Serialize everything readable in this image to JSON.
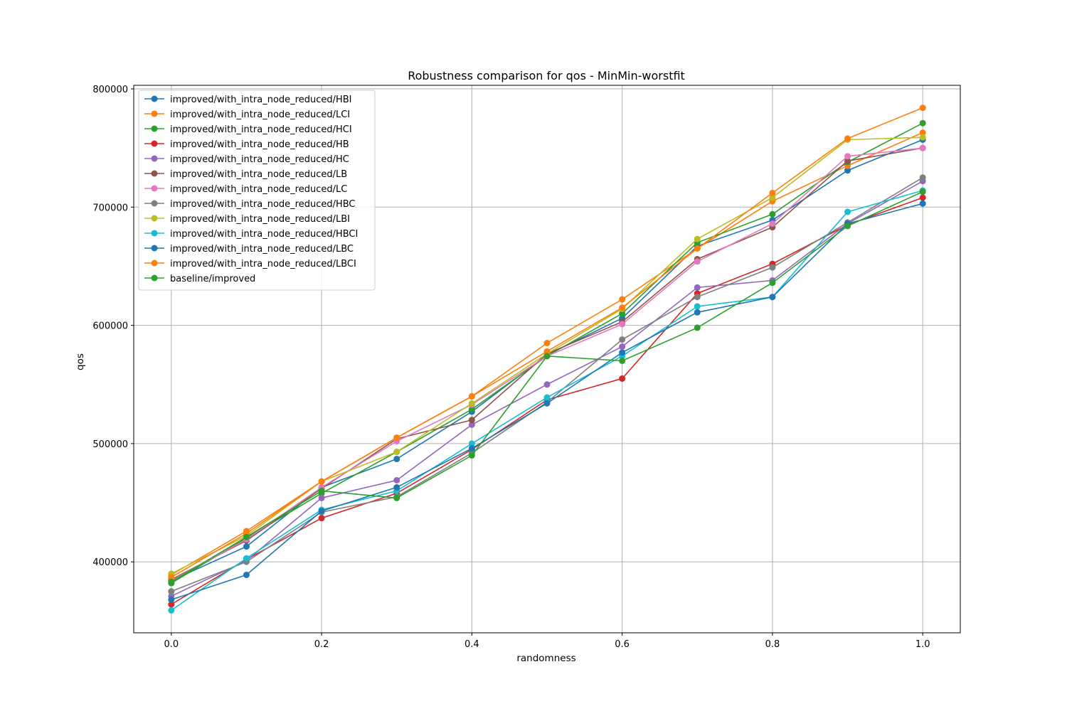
{
  "chart_data": {
    "type": "line",
    "title": "Robustness comparison for qos - MinMin-worstfit",
    "xlabel": "randomness",
    "ylabel": "qos",
    "xlim": [
      -0.05,
      1.05
    ],
    "ylim": [
      340000,
      803000
    ],
    "x_ticks": [
      0.0,
      0.2,
      0.4,
      0.6,
      0.8,
      1.0
    ],
    "x_tick_labels": [
      "0.0",
      "0.2",
      "0.4",
      "0.6",
      "0.8",
      "1.0"
    ],
    "y_ticks": [
      400000,
      500000,
      600000,
      700000,
      800000
    ],
    "y_tick_labels": [
      "400000",
      "500000",
      "600000",
      "700000",
      "800000"
    ],
    "grid": true,
    "legend_position": "upper-left",
    "x": [
      0.0,
      0.1,
      0.2,
      0.3,
      0.4,
      0.5,
      0.6,
      0.7,
      0.8,
      0.9,
      1.0
    ],
    "series": [
      {
        "name": "improved/with_intra_node_reduced/HBI",
        "color": "#1f77b4",
        "values": [
          384000,
          413000,
          463000,
          487000,
          527000,
          575000,
          606000,
          667000,
          689000,
          731000,
          757000
        ]
      },
      {
        "name": "improved/with_intra_node_reduced/LCI",
        "color": "#ff7f0e",
        "values": [
          389000,
          426000,
          468000,
          505000,
          540000,
          585000,
          622000,
          665000,
          705000,
          735000,
          763000
        ]
      },
      {
        "name": "improved/with_intra_node_reduced/HCI",
        "color": "#2ca02c",
        "values": [
          382000,
          420000,
          458000,
          493000,
          529000,
          574000,
          610000,
          670000,
          694000,
          738000,
          771000
        ]
      },
      {
        "name": "improved/with_intra_node_reduced/HB",
        "color": "#d62728",
        "values": [
          364000,
          402000,
          437000,
          458000,
          495000,
          537000,
          555000,
          627000,
          652000,
          685000,
          708000
        ]
      },
      {
        "name": "improved/with_intra_node_reduced/HC",
        "color": "#9467bd",
        "values": [
          371000,
          401000,
          454000,
          469000,
          516000,
          550000,
          582000,
          632000,
          638000,
          686000,
          722000
        ]
      },
      {
        "name": "improved/with_intra_node_reduced/LB",
        "color": "#8c564b",
        "values": [
          385000,
          418000,
          462000,
          504000,
          520000,
          576000,
          603000,
          656000,
          683000,
          739000,
          750000
        ]
      },
      {
        "name": "improved/with_intra_node_reduced/LC",
        "color": "#e377c2",
        "values": [
          384000,
          419000,
          463000,
          502000,
          533000,
          574000,
          601000,
          654000,
          686000,
          743000,
          750000
        ]
      },
      {
        "name": "improved/with_intra_node_reduced/HBC",
        "color": "#7f7f7f",
        "values": [
          375000,
          400000,
          442000,
          455000,
          492000,
          535000,
          588000,
          624000,
          649000,
          687000,
          725000
        ]
      },
      {
        "name": "improved/with_intra_node_reduced/LBI",
        "color": "#bcbd22",
        "values": [
          390000,
          422000,
          468000,
          493000,
          534000,
          576000,
          614000,
          673000,
          708000,
          757000,
          759000
        ]
      },
      {
        "name": "improved/with_intra_node_reduced/HBCI",
        "color": "#17becf",
        "values": [
          359000,
          403000,
          444000,
          460000,
          500000,
          539000,
          574000,
          616000,
          624000,
          696000,
          714000
        ]
      },
      {
        "name": "improved/with_intra_node_reduced/LBC",
        "color": "#1f77b4",
        "values": [
          368000,
          389000,
          443000,
          463000,
          496000,
          534000,
          577000,
          611000,
          624000,
          686000,
          703000
        ]
      },
      {
        "name": "improved/with_intra_node_reduced/LBCI",
        "color": "#ff7f0e",
        "values": [
          387000,
          424000,
          468000,
          505000,
          540000,
          578000,
          615000,
          665000,
          712000,
          758000,
          784000
        ]
      },
      {
        "name": "baseline/improved",
        "color": "#2ca02c",
        "values": [
          383000,
          421000,
          460000,
          454000,
          490000,
          574000,
          570000,
          598000,
          636000,
          684000,
          713000
        ]
      }
    ]
  }
}
